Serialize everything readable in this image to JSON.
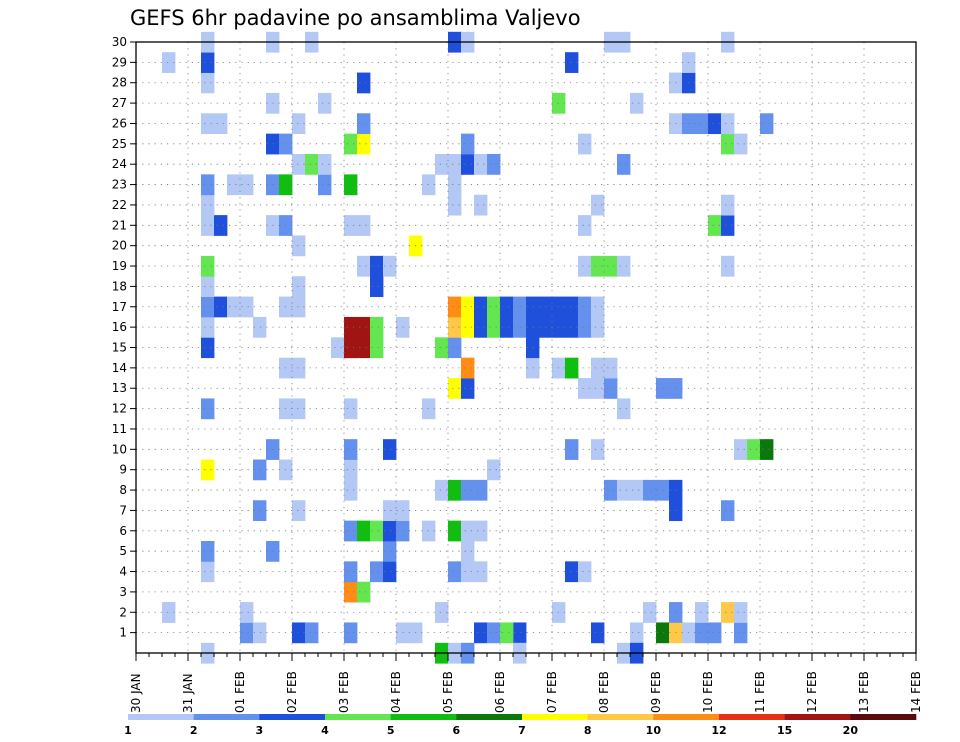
{
  "chart_data": {
    "type": "heatmap",
    "title": "GEFS 6hr padavine po ansamblima Valjevo",
    "x_tick_labels": [
      "30 JAN",
      "31 JAN",
      "01 FEB",
      "02 FEB",
      "03 FEB",
      "04 FEB",
      "05 FEB",
      "06 FEB",
      "07 FEB",
      "08 FEB",
      "09 FEB",
      "10 FEB",
      "11 FEB",
      "12 FEB",
      "13 FEB",
      "14 FEB"
    ],
    "y_tick_labels": [
      "1",
      "2",
      "3",
      "4",
      "5",
      "6",
      "7",
      "8",
      "9",
      "10",
      "11",
      "12",
      "13",
      "14",
      "15",
      "16",
      "17",
      "18",
      "19",
      "20",
      "21",
      "22",
      "23",
      "24",
      "25",
      "26",
      "27",
      "28",
      "29",
      "30"
    ],
    "ylim": [
      0,
      30
    ],
    "grid": true,
    "colorbar": {
      "labels": [
        "1",
        "2",
        "3",
        "4",
        "5",
        "6",
        "7",
        "8",
        "10",
        "12",
        "15",
        "20"
      ],
      "colors": [
        "#b4c8f5",
        "#6491ee",
        "#1e50dc",
        "#64e650",
        "#0fbe0f",
        "#0a780a",
        "#ffff00",
        "#ffc846",
        "#ff8c14",
        "#e63214",
        "#a01414",
        "#5a0a0a"
      ]
    },
    "cells": [
      [
        8,
        1,
        2
      ],
      [
        9,
        1,
        1
      ],
      [
        12,
        1,
        3
      ],
      [
        13,
        1,
        2
      ],
      [
        16,
        1,
        2
      ],
      [
        20,
        1,
        1
      ],
      [
        21,
        1,
        1
      ],
      [
        26,
        1,
        3
      ],
      [
        27,
        1,
        2
      ],
      [
        29,
        1,
        3
      ],
      [
        28,
        1,
        4
      ],
      [
        35,
        1,
        3
      ],
      [
        38,
        1,
        1
      ],
      [
        40,
        1,
        6
      ],
      [
        41,
        1,
        8
      ],
      [
        42,
        1,
        1
      ],
      [
        43,
        1,
        2
      ],
      [
        44,
        1,
        2
      ],
      [
        46,
        1,
        2
      ],
      [
        2,
        2,
        1
      ],
      [
        8,
        2,
        1
      ],
      [
        23,
        2,
        1
      ],
      [
        32,
        2,
        1
      ],
      [
        39,
        2,
        1
      ],
      [
        41,
        2,
        2
      ],
      [
        43,
        2,
        1
      ],
      [
        45,
        2,
        8
      ],
      [
        46,
        2,
        1
      ],
      [
        16,
        3,
        9
      ],
      [
        17,
        3,
        4
      ],
      [
        5,
        4,
        1
      ],
      [
        16,
        4,
        2
      ],
      [
        18,
        4,
        2
      ],
      [
        19,
        4,
        3
      ],
      [
        24,
        4,
        2
      ],
      [
        25,
        4,
        1
      ],
      [
        26,
        4,
        1
      ],
      [
        33,
        4,
        3
      ],
      [
        34,
        4,
        1
      ],
      [
        5,
        5,
        2
      ],
      [
        10,
        5,
        2
      ],
      [
        19,
        5,
        2
      ],
      [
        25,
        5,
        1
      ],
      [
        16,
        6,
        2
      ],
      [
        17,
        6,
        5
      ],
      [
        18,
        6,
        4
      ],
      [
        19,
        6,
        3
      ],
      [
        20,
        6,
        2
      ],
      [
        22,
        6,
        1
      ],
      [
        24,
        6,
        5
      ],
      [
        25,
        6,
        1
      ],
      [
        26,
        6,
        1
      ],
      [
        9,
        7,
        2
      ],
      [
        12,
        7,
        1
      ],
      [
        19,
        7,
        1
      ],
      [
        20,
        7,
        1
      ],
      [
        41,
        7,
        3
      ],
      [
        45,
        7,
        2
      ],
      [
        16,
        8,
        1
      ],
      [
        23,
        8,
        1
      ],
      [
        24,
        8,
        5
      ],
      [
        25,
        8,
        2
      ],
      [
        26,
        8,
        2
      ],
      [
        36,
        8,
        2
      ],
      [
        37,
        8,
        1
      ],
      [
        38,
        8,
        1
      ],
      [
        39,
        8,
        2
      ],
      [
        40,
        8,
        2
      ],
      [
        41,
        8,
        3
      ],
      [
        5,
        9,
        7
      ],
      [
        9,
        9,
        2
      ],
      [
        11,
        9,
        1
      ],
      [
        16,
        9,
        1
      ],
      [
        16,
        9,
        1
      ],
      [
        27,
        9,
        1
      ],
      [
        10,
        10,
        2
      ],
      [
        16,
        10,
        2
      ],
      [
        19,
        10,
        3
      ],
      [
        33,
        10,
        2
      ],
      [
        35,
        10,
        1
      ],
      [
        46,
        10,
        1
      ],
      [
        47,
        10,
        4
      ],
      [
        48,
        10,
        6
      ],
      [
        5,
        12,
        2
      ],
      [
        11,
        12,
        1
      ],
      [
        12,
        12,
        1
      ],
      [
        16,
        12,
        1
      ],
      [
        22,
        12,
        1
      ],
      [
        37,
        12,
        1
      ],
      [
        24,
        13,
        7
      ],
      [
        25,
        13,
        3
      ],
      [
        34,
        13,
        1
      ],
      [
        35,
        13,
        1
      ],
      [
        36,
        13,
        2
      ],
      [
        40,
        13,
        2
      ],
      [
        41,
        13,
        2
      ],
      [
        11,
        14,
        1
      ],
      [
        12,
        14,
        1
      ],
      [
        25,
        14,
        9
      ],
      [
        30,
        14,
        1
      ],
      [
        32,
        14,
        1
      ],
      [
        33,
        14,
        5
      ],
      [
        35,
        14,
        1
      ],
      [
        36,
        14,
        1
      ],
      [
        5,
        15,
        3
      ],
      [
        15,
        15,
        1
      ],
      [
        16,
        15,
        11
      ],
      [
        17,
        15,
        11
      ],
      [
        18,
        15,
        4
      ],
      [
        23,
        15,
        4
      ],
      [
        24,
        15,
        2
      ],
      [
        30,
        15,
        3
      ],
      [
        16,
        15,
        11
      ],
      [
        5,
        16,
        1
      ],
      [
        9,
        16,
        1
      ],
      [
        16,
        16,
        11
      ],
      [
        17,
        16,
        11
      ],
      [
        18,
        16,
        4
      ],
      [
        20,
        16,
        1
      ],
      [
        24,
        16,
        8
      ],
      [
        25,
        16,
        7
      ],
      [
        26,
        16,
        3
      ],
      [
        27,
        16,
        4
      ],
      [
        28,
        16,
        3
      ],
      [
        29,
        16,
        2
      ],
      [
        30,
        16,
        3
      ],
      [
        31,
        16,
        3
      ],
      [
        32,
        16,
        3
      ],
      [
        33,
        16,
        3
      ],
      [
        34,
        16,
        2
      ],
      [
        35,
        16,
        1
      ],
      [
        5,
        17,
        2
      ],
      [
        6,
        17,
        3
      ],
      [
        7,
        17,
        1
      ],
      [
        8,
        17,
        1
      ],
      [
        11,
        17,
        1
      ],
      [
        12,
        17,
        1
      ],
      [
        24,
        17,
        9
      ],
      [
        25,
        17,
        7
      ],
      [
        26,
        17,
        3
      ],
      [
        27,
        17,
        4
      ],
      [
        28,
        17,
        3
      ],
      [
        29,
        17,
        2
      ],
      [
        30,
        17,
        3
      ],
      [
        31,
        17,
        3
      ],
      [
        32,
        17,
        3
      ],
      [
        33,
        17,
        3
      ],
      [
        34,
        17,
        2
      ],
      [
        35,
        17,
        1
      ],
      [
        5,
        18,
        1
      ],
      [
        12,
        18,
        1
      ],
      [
        18,
        18,
        3
      ],
      [
        5,
        19,
        4
      ],
      [
        17,
        19,
        1
      ],
      [
        18,
        19,
        3
      ],
      [
        19,
        19,
        1
      ],
      [
        34,
        19,
        1
      ],
      [
        35,
        19,
        4
      ],
      [
        36,
        19,
        4
      ],
      [
        37,
        19,
        1
      ],
      [
        45,
        19,
        1
      ],
      [
        21,
        20,
        7
      ],
      [
        12,
        20,
        1
      ],
      [
        5,
        21,
        1
      ],
      [
        6,
        21,
        3
      ],
      [
        10,
        21,
        1
      ],
      [
        11,
        21,
        2
      ],
      [
        16,
        21,
        1
      ],
      [
        17,
        21,
        1
      ],
      [
        34,
        21,
        1
      ],
      [
        44,
        21,
        4
      ],
      [
        45,
        21,
        3
      ],
      [
        5,
        22,
        1
      ],
      [
        24,
        22,
        1
      ],
      [
        26,
        22,
        1
      ],
      [
        35,
        22,
        1
      ],
      [
        45,
        22,
        1
      ],
      [
        5,
        23,
        2
      ],
      [
        7,
        23,
        1
      ],
      [
        8,
        23,
        1
      ],
      [
        10,
        23,
        2
      ],
      [
        11,
        23,
        5
      ],
      [
        14,
        23,
        2
      ],
      [
        16,
        23,
        5
      ],
      [
        22,
        23,
        1
      ],
      [
        24,
        23,
        1
      ],
      [
        12,
        24,
        1
      ],
      [
        13,
        24,
        4
      ],
      [
        14,
        24,
        1
      ],
      [
        23,
        24,
        1
      ],
      [
        24,
        24,
        1
      ],
      [
        25,
        24,
        3
      ],
      [
        26,
        24,
        1
      ],
      [
        27,
        24,
        2
      ],
      [
        37,
        24,
        2
      ],
      [
        10,
        25,
        3
      ],
      [
        11,
        25,
        2
      ],
      [
        16,
        25,
        4
      ],
      [
        17,
        25,
        7
      ],
      [
        25,
        25,
        2
      ],
      [
        34,
        25,
        1
      ],
      [
        45,
        25,
        4
      ],
      [
        46,
        25,
        1
      ],
      [
        5,
        26,
        1
      ],
      [
        6,
        26,
        1
      ],
      [
        12,
        26,
        1
      ],
      [
        17,
        26,
        2
      ],
      [
        41,
        26,
        1
      ],
      [
        42,
        26,
        2
      ],
      [
        43,
        26,
        2
      ],
      [
        44,
        26,
        3
      ],
      [
        45,
        26,
        1
      ],
      [
        48,
        26,
        2
      ],
      [
        10,
        27,
        1
      ],
      [
        14,
        27,
        1
      ],
      [
        32,
        27,
        4
      ],
      [
        38,
        27,
        1
      ],
      [
        5,
        28,
        1
      ],
      [
        17,
        28,
        3
      ],
      [
        41,
        28,
        1
      ],
      [
        42,
        28,
        3
      ],
      [
        2,
        29,
        1
      ],
      [
        5,
        29,
        3
      ],
      [
        33,
        29,
        3
      ],
      [
        42,
        29,
        1
      ],
      [
        5,
        30,
        1
      ],
      [
        10,
        30,
        1
      ],
      [
        13,
        30,
        1
      ],
      [
        24,
        30,
        3
      ],
      [
        25,
        30,
        1
      ],
      [
        36,
        30,
        1
      ],
      [
        37,
        30,
        1
      ],
      [
        45,
        30,
        1
      ],
      [
        5,
        0,
        1
      ],
      [
        23,
        0,
        5
      ],
      [
        24,
        0,
        1
      ],
      [
        25,
        0,
        2
      ],
      [
        29,
        0,
        1
      ],
      [
        37,
        0,
        1
      ],
      [
        38,
        0,
        3
      ]
    ]
  }
}
